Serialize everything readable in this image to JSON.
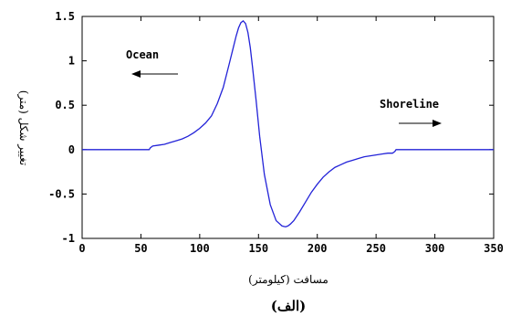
{
  "chart_data": {
    "type": "line",
    "title": "",
    "xlabel": "مسافت (کیلومتر)",
    "ylabel": "تغییر شکل (متر)",
    "panel_label": "(الف)",
    "xlim": [
      0,
      350
    ],
    "ylim": [
      -1,
      1.5
    ],
    "x_ticks": [
      0,
      50,
      100,
      150,
      200,
      250,
      300,
      350
    ],
    "y_ticks": [
      -1,
      -0.5,
      0,
      0.5,
      1,
      1.5
    ],
    "x_tick_labels": [
      "0",
      "50",
      "100",
      "150",
      "200",
      "250",
      "300",
      "350"
    ],
    "y_tick_labels": [
      "-1",
      "-0.5",
      "0",
      "0.5",
      "1",
      "1.5"
    ],
    "grid": false,
    "line_color": "#2323d8",
    "annotations": [
      {
        "text": "Ocean",
        "arrow": "left"
      },
      {
        "text": "Shoreline",
        "arrow": "right"
      }
    ],
    "series": [
      {
        "x": [
          0,
          10,
          20,
          30,
          40,
          50,
          55,
          57,
          58,
          60,
          65,
          70,
          75,
          80,
          85,
          90,
          95,
          100,
          105,
          110,
          115,
          120,
          125,
          128,
          131,
          133,
          135,
          137,
          139,
          141,
          143,
          145,
          148,
          151,
          155,
          160,
          165,
          170,
          173,
          175,
          177,
          180,
          185,
          190,
          195,
          200,
          205,
          210,
          215,
          220,
          225,
          230,
          235,
          240,
          245,
          250,
          255,
          260,
          264,
          265,
          266,
          267,
          270,
          280,
          290,
          300,
          310,
          320,
          330,
          340,
          350
        ],
        "y": [
          0,
          0,
          0,
          0,
          0,
          0,
          0,
          0,
          0.02,
          0.04,
          0.05,
          0.06,
          0.08,
          0.1,
          0.12,
          0.15,
          0.19,
          0.24,
          0.3,
          0.38,
          0.52,
          0.7,
          0.96,
          1.12,
          1.28,
          1.37,
          1.43,
          1.45,
          1.42,
          1.32,
          1.15,
          0.92,
          0.55,
          0.15,
          -0.28,
          -0.62,
          -0.8,
          -0.86,
          -0.87,
          -0.86,
          -0.84,
          -0.8,
          -0.7,
          -0.59,
          -0.48,
          -0.39,
          -0.31,
          -0.25,
          -0.2,
          -0.17,
          -0.14,
          -0.12,
          -0.1,
          -0.08,
          -0.07,
          -0.06,
          -0.05,
          -0.04,
          -0.04,
          -0.03,
          -0.02,
          0,
          0,
          0,
          0,
          0,
          0,
          0,
          0,
          0,
          0
        ]
      }
    ]
  }
}
